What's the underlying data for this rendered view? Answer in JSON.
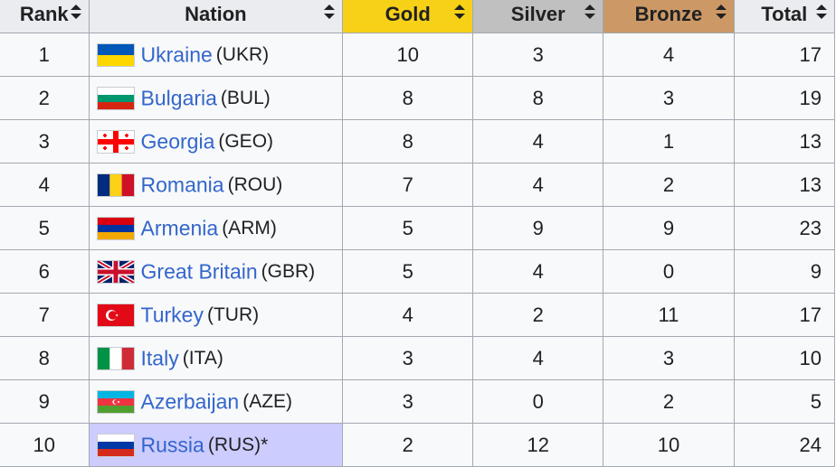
{
  "headers": {
    "rank": "Rank",
    "nation": "Nation",
    "gold": "Gold",
    "silver": "Silver",
    "bronze": "Bronze",
    "total": "Total"
  },
  "colors": {
    "gold": "#f7d117",
    "silver": "#c0c0c0",
    "bronze": "#cc9966",
    "host": "#ccccff",
    "link": "#3366cc"
  },
  "rows": [
    {
      "rank": "1",
      "nation": "Ukraine",
      "code": "(UKR)",
      "gold": "10",
      "silver": "3",
      "bronze": "4",
      "total": "17",
      "flag": "flag-ukraine-icon"
    },
    {
      "rank": "2",
      "nation": "Bulgaria",
      "code": "(BUL)",
      "gold": "8",
      "silver": "8",
      "bronze": "3",
      "total": "19",
      "flag": "flag-bulgaria-icon"
    },
    {
      "rank": "3",
      "nation": "Georgia",
      "code": "(GEO)",
      "gold": "8",
      "silver": "4",
      "bronze": "1",
      "total": "13",
      "flag": "flag-georgia-icon"
    },
    {
      "rank": "4",
      "nation": "Romania",
      "code": "(ROU)",
      "gold": "7",
      "silver": "4",
      "bronze": "2",
      "total": "13",
      "flag": "flag-romania-icon"
    },
    {
      "rank": "5",
      "nation": "Armenia",
      "code": "(ARM)",
      "gold": "5",
      "silver": "9",
      "bronze": "9",
      "total": "23",
      "flag": "flag-armenia-icon"
    },
    {
      "rank": "6",
      "nation": "Great Britain",
      "code": "(GBR)",
      "gold": "5",
      "silver": "4",
      "bronze": "0",
      "total": "9",
      "flag": "flag-great-britain-icon"
    },
    {
      "rank": "7",
      "nation": "Turkey",
      "code": "(TUR)",
      "gold": "4",
      "silver": "2",
      "bronze": "11",
      "total": "17",
      "flag": "flag-turkey-icon"
    },
    {
      "rank": "8",
      "nation": "Italy",
      "code": "(ITA)",
      "gold": "3",
      "silver": "4",
      "bronze": "3",
      "total": "10",
      "flag": "flag-italy-icon"
    },
    {
      "rank": "9",
      "nation": "Azerbaijan",
      "code": "(AZE)",
      "gold": "3",
      "silver": "0",
      "bronze": "2",
      "total": "5",
      "flag": "flag-azerbaijan-icon"
    },
    {
      "rank": "10",
      "nation": "Russia",
      "code": "(RUS)*",
      "gold": "2",
      "silver": "12",
      "bronze": "10",
      "total": "24",
      "flag": "flag-russia-icon",
      "host": true
    }
  ]
}
